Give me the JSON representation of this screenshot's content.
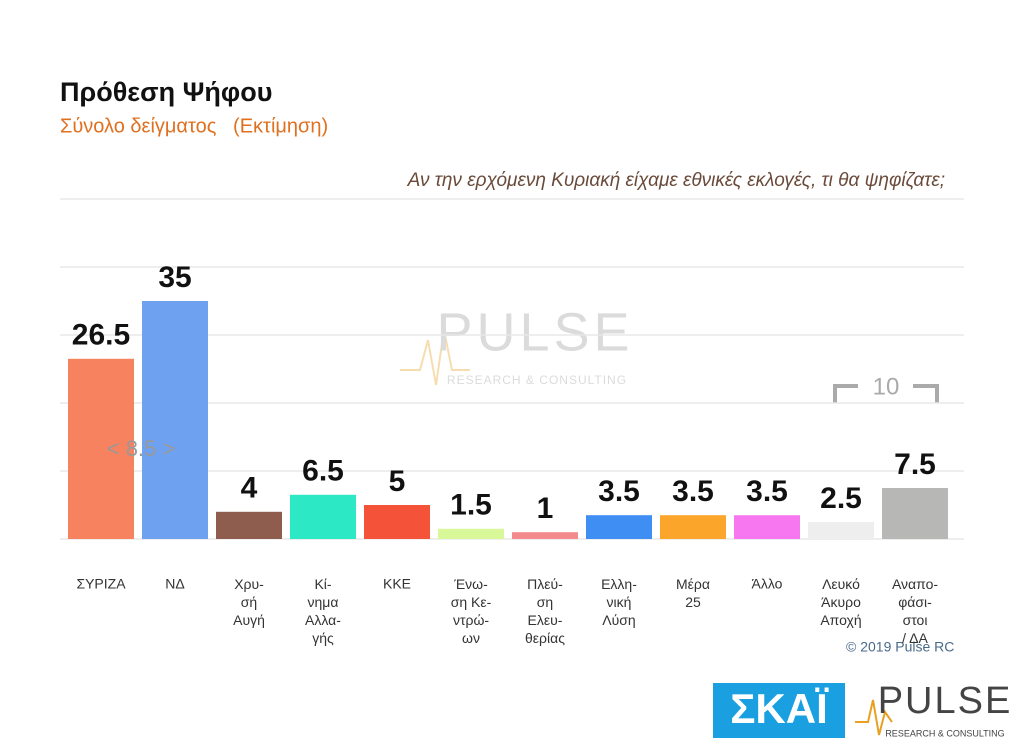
{
  "chart_data": {
    "type": "bar",
    "title": "Πρόθεση Ψήφου",
    "subtitle": "Σύνολο δείγματος   (Εκτίμηση)",
    "question": "Αν την ερχόμενη Κυριακή είχαμε εθνικές εκλογές, τι θα ψηφίζατε;",
    "categories": [
      "ΣΥΡΙΖΑ",
      "ΝΔ",
      "Χρυ-\nσή\nΑυγή",
      "Κί-\nνημα\nΑλλα-\nγής",
      "ΚΚΕ",
      "Ένω-\nση Κε-\nντρώ-\nων",
      "Πλεύ-\nση\nΕλευ-\nθερίας",
      "Ελλη-\nνική\nΛύση",
      "Μέρα\n25",
      "Άλλο",
      "Λευκό\nΆκυρο\nΑποχή",
      "Αναπο-\nφάσι-\nστοι\n/ ΔΑ"
    ],
    "values": [
      26.5,
      35,
      4,
      6.5,
      5,
      1.5,
      1,
      3.5,
      3.5,
      3.5,
      2.5,
      7.5
    ],
    "colors": [
      "#f7825f",
      "#6fa1f1",
      "#8e5d4e",
      "#2de8c4",
      "#f5523a",
      "#d8f89a",
      "#f28a8e",
      "#3f8ef4",
      "#fba52a",
      "#f777f0",
      "#eeeeee",
      "#b7b7b5"
    ],
    "ylim": [
      0,
      50
    ],
    "yticks": [
      0,
      10,
      20,
      30,
      40,
      50
    ],
    "grid": true,
    "annotations": [
      {
        "text": "< 8.5 >",
        "value": 8.5
      },
      {
        "text": "10",
        "value": 10
      }
    ],
    "copyright": "© 2019 Pulse RC",
    "watermark": {
      "name": "PULSE",
      "tagline": "RESEARCH & CONSULTING"
    },
    "logos": {
      "channel": "ΣΚΑΪ",
      "pulse": "PULSE",
      "pulse_tagline": "RESEARCH & CONSULTING"
    }
  }
}
